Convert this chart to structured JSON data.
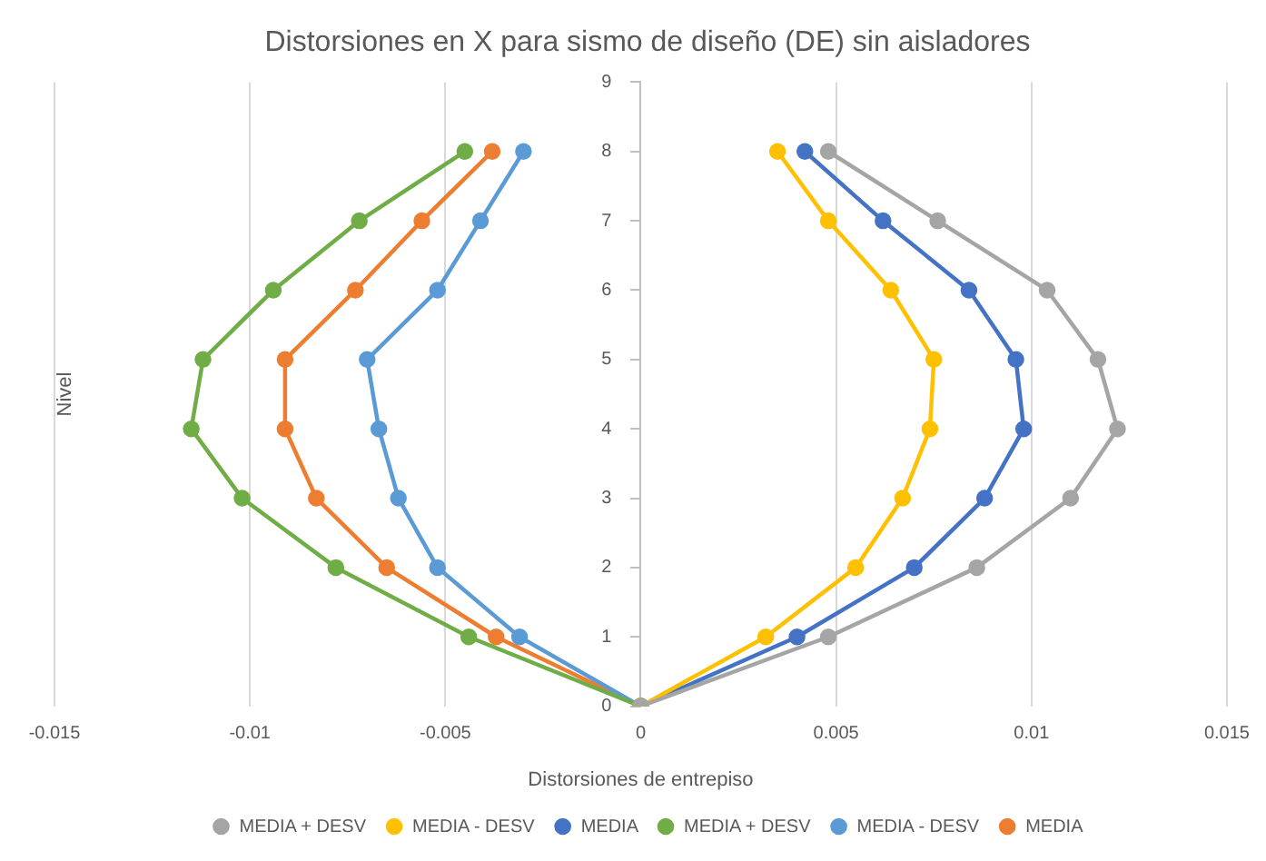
{
  "chart_data": {
    "type": "line",
    "title": "Distorsiones en X para sismo de diseño (DE) sin aisladores",
    "xlabel": "Distorsiones de entrepiso",
    "ylabel": "Nivel",
    "xlim": [
      -0.015,
      0.015
    ],
    "xticks": [
      -0.015,
      -0.01,
      -0.005,
      0,
      0.005,
      0.01,
      0.015
    ],
    "ylim": [
      0,
      9
    ],
    "yticks": [
      0,
      1,
      2,
      3,
      4,
      5,
      6,
      7,
      8,
      9
    ],
    "grid": "x",
    "legend": "bottom",
    "marker": "circle",
    "line_style": "solid",
    "series": [
      {
        "name": "MEDIA + DESV",
        "color": "#a5a5a5",
        "x": [
          0,
          0.0048,
          0.0086,
          0.011,
          0.0122,
          0.0117,
          0.0104,
          0.0076,
          0.0048
        ],
        "values": [
          0,
          1,
          2,
          3,
          4,
          5,
          6,
          7,
          8
        ]
      },
      {
        "name": "MEDIA - DESV",
        "color": "#ffc000",
        "x": [
          0,
          0.0032,
          0.0055,
          0.0067,
          0.0074,
          0.0075,
          0.0064,
          0.0048,
          0.0035
        ],
        "values": [
          0,
          1,
          2,
          3,
          4,
          5,
          6,
          7,
          8
        ]
      },
      {
        "name": "MEDIA",
        "color": "#4472c4",
        "x": [
          0,
          0.004,
          0.007,
          0.0088,
          0.0098,
          0.0096,
          0.0084,
          0.0062,
          0.0042
        ],
        "values": [
          0,
          1,
          2,
          3,
          4,
          5,
          6,
          7,
          8
        ]
      },
      {
        "name": "MEDIA + DESV",
        "color": "#70ad47",
        "x": [
          0,
          -0.0044,
          -0.0078,
          -0.0102,
          -0.0115,
          -0.0112,
          -0.0094,
          -0.0072,
          -0.0045
        ],
        "values": [
          0,
          1,
          2,
          3,
          4,
          5,
          6,
          7,
          8
        ]
      },
      {
        "name": "MEDIA - DESV",
        "color": "#5b9bd5",
        "x": [
          0,
          -0.0031,
          -0.0052,
          -0.0062,
          -0.0067,
          -0.007,
          -0.0052,
          -0.0041,
          -0.003
        ],
        "values": [
          0,
          1,
          2,
          3,
          4,
          5,
          6,
          7,
          8
        ]
      },
      {
        "name": "MEDIA",
        "color": "#ed7d31",
        "x": [
          0,
          -0.0037,
          -0.0065,
          -0.0083,
          -0.0091,
          -0.0091,
          -0.0073,
          -0.0056,
          -0.0038
        ],
        "values": [
          0,
          1,
          2,
          3,
          4,
          5,
          6,
          7,
          8
        ]
      }
    ]
  }
}
